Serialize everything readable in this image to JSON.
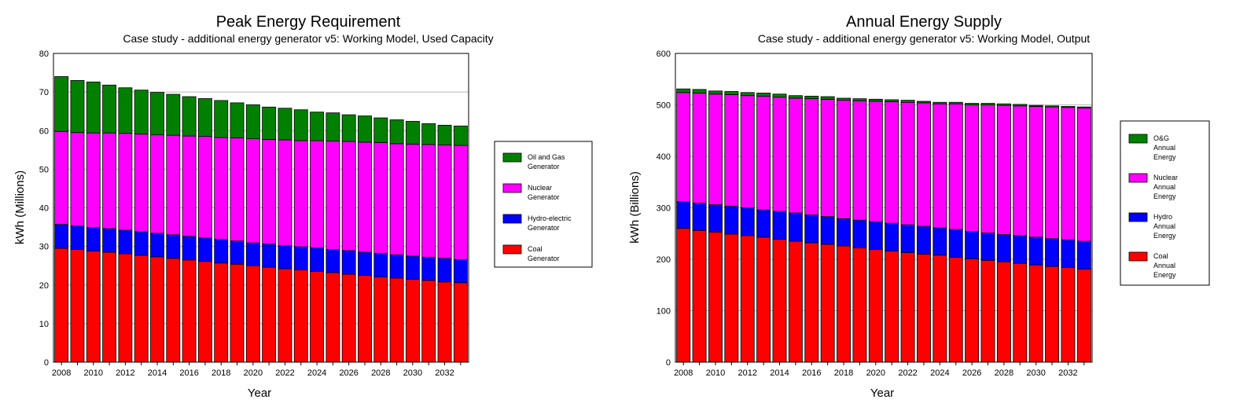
{
  "charts": [
    {
      "title": "Peak Energy Requirement",
      "subtitle": "Case study - additional energy generator v5:  Working Model, Used Capacity",
      "xlabel": "Year",
      "ylabel": "kWh  (Millions)"
    },
    {
      "title": "Annual Energy Supply",
      "subtitle": "Case study - additional energy generator v5:  Working Model, Output",
      "xlabel": "Year",
      "ylabel": "kWh  (Billions)"
    }
  ],
  "chart_data": [
    {
      "type": "bar",
      "stacked": true,
      "title": "Peak Energy Requirement",
      "subtitle": "Case study - additional energy generator v5:  Working Model, Used Capacity",
      "xlabel": "Year",
      "ylabel": "kWh  (Millions)",
      "ylim": [
        0,
        80
      ],
      "yticks": [
        0,
        10,
        20,
        30,
        40,
        50,
        60,
        70,
        80
      ],
      "xtick_labels": [
        "2008",
        "2010",
        "2012",
        "2014",
        "2016",
        "2018",
        "2020",
        "2022",
        "2024",
        "2026",
        "2028",
        "2030",
        "2032"
      ],
      "grid": "horizontal",
      "legend_position": "right",
      "categories": [
        "2008",
        "2009",
        "2010",
        "2011",
        "2012",
        "2013",
        "2014",
        "2015",
        "2016",
        "2017",
        "2018",
        "2019",
        "2020",
        "2021",
        "2022",
        "2023",
        "2024",
        "2025",
        "2026",
        "2027",
        "2028",
        "2029",
        "2030",
        "2031",
        "2032",
        "2033"
      ],
      "series": [
        {
          "name": "Coal Generator",
          "legend_lines": [
            "Coal",
            "Generator"
          ],
          "color": "#ff0000",
          "values": [
            29.5,
            29.2,
            28.8,
            28.5,
            28.1,
            27.7,
            27.3,
            26.9,
            26.5,
            26.1,
            25.7,
            25.4,
            25.0,
            24.6,
            24.2,
            23.9,
            23.5,
            23.2,
            22.8,
            22.5,
            22.1,
            21.8,
            21.5,
            21.2,
            20.8,
            20.6
          ]
        },
        {
          "name": "Hydro-electric Generator",
          "legend_lines": [
            "Hydro-electric",
            "Generator"
          ],
          "color": "#0000ff",
          "values": [
            6.2,
            6.1,
            6.1,
            6.1,
            6.1,
            6.1,
            6.1,
            6.1,
            6.1,
            6.1,
            6.1,
            6.0,
            5.9,
            6.0,
            6.0,
            6.0,
            6.1,
            6.0,
            6.1,
            6.0,
            6.1,
            6.0,
            6.0,
            6.0,
            6.1,
            6.0
          ]
        },
        {
          "name": "Nuclear Generator",
          "legend_lines": [
            "Nuclear",
            "Generator"
          ],
          "color": "#ff00ff",
          "values": [
            24.1,
            24.2,
            24.5,
            24.8,
            25.1,
            25.3,
            25.5,
            25.8,
            26.0,
            26.3,
            26.4,
            26.7,
            27.0,
            27.1,
            27.4,
            27.5,
            27.8,
            28.1,
            28.3,
            28.5,
            28.7,
            28.8,
            29.0,
            29.2,
            29.4,
            29.6
          ]
        },
        {
          "name": "Oil and Gas Generator",
          "legend_lines": [
            "Oil and Gas",
            "Generator"
          ],
          "color": "#008000",
          "values": [
            14.2,
            13.5,
            13.2,
            12.4,
            11.8,
            11.4,
            11.0,
            10.6,
            10.2,
            9.8,
            9.6,
            9.1,
            8.8,
            8.4,
            8.2,
            8.0,
            7.4,
            7.3,
            6.9,
            6.8,
            6.4,
            6.2,
            5.9,
            5.4,
            5.1,
            5.0
          ]
        }
      ]
    },
    {
      "type": "bar",
      "stacked": true,
      "title": "Annual Energy Supply",
      "subtitle": "Case study - additional energy generator v5:  Working Model, Output",
      "xlabel": "Year",
      "ylabel": "kWh  (Billions)",
      "ylim": [
        0,
        600
      ],
      "yticks": [
        0,
        100,
        200,
        300,
        400,
        500,
        600
      ],
      "xtick_labels": [
        "2008",
        "2010",
        "2012",
        "2014",
        "2016",
        "2018",
        "2020",
        "2022",
        "2024",
        "2026",
        "2028",
        "2030",
        "2032"
      ],
      "grid": "horizontal",
      "legend_position": "right",
      "categories": [
        "2008",
        "2009",
        "2010",
        "2011",
        "2012",
        "2013",
        "2014",
        "2015",
        "2016",
        "2017",
        "2018",
        "2019",
        "2020",
        "2021",
        "2022",
        "2023",
        "2024",
        "2025",
        "2026",
        "2027",
        "2028",
        "2029",
        "2030",
        "2031",
        "2032",
        "2033"
      ],
      "series": [
        {
          "name": "Coal Annual Energy",
          "legend_lines": [
            "Coal",
            "Annual",
            "Energy"
          ],
          "color": "#ff0000",
          "values": [
            260,
            256,
            253,
            249,
            246,
            243,
            239,
            235,
            232,
            229,
            226,
            222,
            219,
            216,
            213,
            210,
            208,
            204,
            201,
            198,
            195,
            192,
            189,
            186,
            184,
            181
          ]
        },
        {
          "name": "Hydro Annual Energy",
          "legend_lines": [
            "Hydro",
            "Annual",
            "Energy"
          ],
          "color": "#0000ff",
          "values": [
            52,
            53,
            53,
            54,
            54,
            53,
            54,
            55,
            54,
            54,
            53,
            54,
            54,
            54,
            54,
            54,
            53,
            54,
            53,
            53,
            53,
            54,
            54,
            54,
            54,
            54
          ]
        },
        {
          "name": "Nuclear Annual Energy",
          "legend_lines": [
            "Nuclear",
            "Annual",
            "Energy"
          ],
          "color": "#ff00ff",
          "values": [
            212,
            214,
            215,
            217,
            218,
            221,
            222,
            223,
            226,
            228,
            230,
            232,
            234,
            236,
            238,
            240,
            241,
            244,
            246,
            249,
            251,
            252,
            254,
            256,
            257,
            259
          ]
        },
        {
          "name": "O&G Annual Energy",
          "legend_lines": [
            "O&G",
            "Annual",
            "Energy"
          ],
          "color": "#008000",
          "values": [
            7,
            7,
            6,
            6,
            6,
            6,
            6,
            5,
            5,
            5,
            4,
            4,
            4,
            4,
            4,
            3,
            3,
            3,
            3,
            3,
            3,
            3,
            2,
            2,
            2,
            2
          ]
        }
      ]
    }
  ]
}
